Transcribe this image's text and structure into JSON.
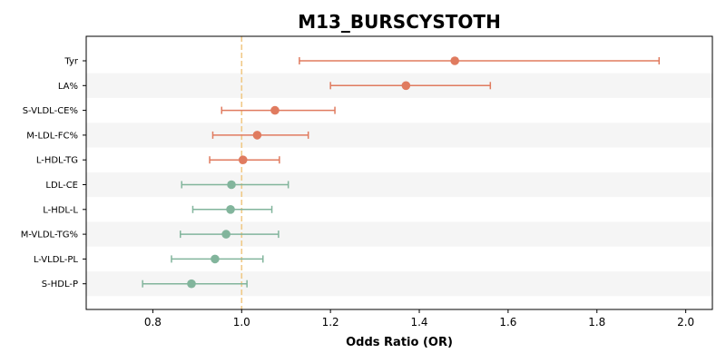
{
  "chart_data": {
    "type": "forest",
    "title": "M13_BURSCYSTOTH",
    "xlabel": "Odds Ratio (OR)",
    "xlim": [
      0.65,
      2.06
    ],
    "xticks": [
      0.8,
      1.0,
      1.2,
      1.4,
      1.6,
      1.8,
      2.0
    ],
    "xtick_labels": [
      "0.8",
      "1.0",
      "1.2",
      "1.4",
      "1.6",
      "1.8",
      "2.0"
    ],
    "reference_line": 1.0,
    "reference_color": "#f0c987",
    "band_color": "#f5f5f5",
    "categories": [
      "Tyr",
      "LA%",
      "S-VLDL-CE%",
      "M-LDL-FC%",
      "L-HDL-TG",
      "LDL-CE",
      "L-HDL-L",
      "M-VLDL-TG%",
      "L-VLDL-PL",
      "S-HDL-P"
    ],
    "points": [
      {
        "label": "Tyr",
        "or": 1.48,
        "lower": 1.13,
        "upper": 1.94,
        "color": "#e07b5f"
      },
      {
        "label": "LA%",
        "or": 1.37,
        "lower": 1.2,
        "upper": 1.56,
        "color": "#e07b5f"
      },
      {
        "label": "S-VLDL-CE%",
        "or": 1.075,
        "lower": 0.955,
        "upper": 1.21,
        "color": "#e07b5f"
      },
      {
        "label": "M-LDL-FC%",
        "or": 1.035,
        "lower": 0.935,
        "upper": 1.15,
        "color": "#e07b5f"
      },
      {
        "label": "L-HDL-TG",
        "or": 1.003,
        "lower": 0.928,
        "upper": 1.085,
        "color": "#e07b5f"
      },
      {
        "label": "LDL-CE",
        "or": 0.977,
        "lower": 0.865,
        "upper": 1.105,
        "color": "#82b59c"
      },
      {
        "label": "L-HDL-L",
        "or": 0.975,
        "lower": 0.89,
        "upper": 1.068,
        "color": "#82b59c"
      },
      {
        "label": "M-VLDL-TG%",
        "or": 0.965,
        "lower": 0.862,
        "upper": 1.083,
        "color": "#82b59c"
      },
      {
        "label": "L-VLDL-PL",
        "or": 0.94,
        "lower": 0.842,
        "upper": 1.048,
        "color": "#82b59c"
      },
      {
        "label": "S-HDL-P",
        "or": 0.887,
        "lower": 0.777,
        "upper": 1.012,
        "color": "#82b59c"
      }
    ]
  }
}
